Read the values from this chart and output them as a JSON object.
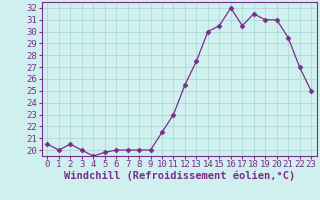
{
  "x": [
    0,
    1,
    2,
    3,
    4,
    5,
    6,
    7,
    8,
    9,
    10,
    11,
    12,
    13,
    14,
    15,
    16,
    17,
    18,
    19,
    20,
    21,
    22,
    23
  ],
  "y": [
    20.5,
    20.0,
    20.5,
    20.0,
    19.5,
    19.8,
    20.0,
    20.0,
    20.0,
    20.0,
    21.5,
    23.0,
    25.5,
    27.5,
    30.0,
    30.5,
    32.0,
    30.5,
    31.5,
    31.0,
    31.0,
    29.5,
    27.0,
    25.0
  ],
  "line_color": "#7b2d8b",
  "marker": "D",
  "marker_size": 2.5,
  "bg_color": "#cff0ee",
  "grid_color": "#aadad6",
  "xlabel": "Windchill (Refroidissement éolien,°C)",
  "xlabel_fontsize": 7.5,
  "ylim": [
    19.5,
    32.5
  ],
  "xlim": [
    -0.5,
    23.5
  ],
  "yticks": [
    20,
    21,
    22,
    23,
    24,
    25,
    26,
    27,
    28,
    29,
    30,
    31,
    32
  ],
  "xticks": [
    0,
    1,
    2,
    3,
    4,
    5,
    6,
    7,
    8,
    9,
    10,
    11,
    12,
    13,
    14,
    15,
    16,
    17,
    18,
    19,
    20,
    21,
    22,
    23
  ],
  "tick_label_fontsize": 6.5,
  "spine_color": "#7b2d8b",
  "tick_color": "#7b2d8b",
  "xlabel_color": "#7b2d8b"
}
